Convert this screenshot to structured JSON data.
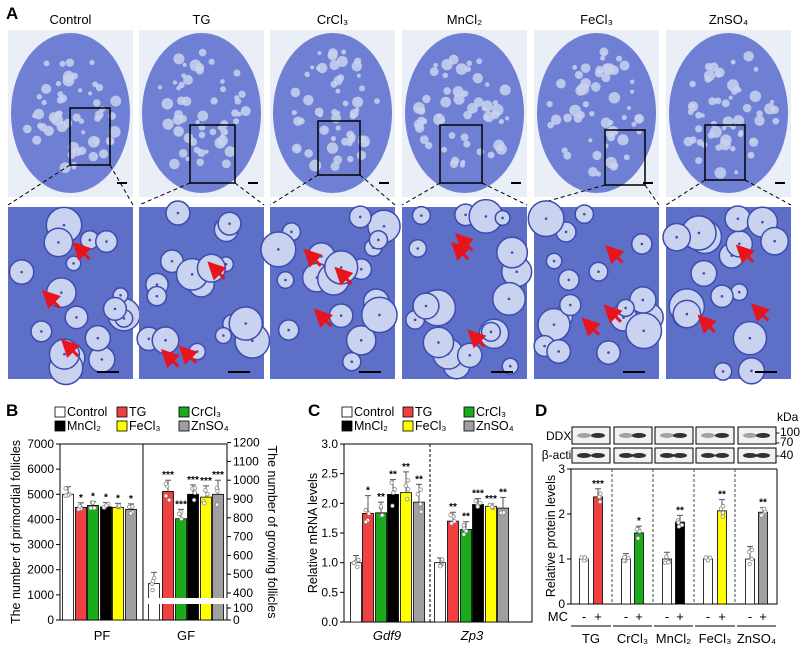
{
  "panel_labels": [
    "A",
    "B",
    "C",
    "D"
  ],
  "panel_a": {
    "columns": [
      "Control",
      "TG",
      "CrCl₃",
      "MnCl₂",
      "FeCl₃",
      "ZnSO₄"
    ],
    "image_colors": {
      "background": "#e9eef7",
      "tissue": "#6f7fd3",
      "oocyte": "#c9d2ef",
      "arrow": "#e8141c"
    }
  },
  "legend": [
    "Control",
    "TG",
    "CrCl₃",
    "MnCl₂",
    "FeCl₃",
    "ZnSO₄"
  ],
  "group_colors": [
    "#ffffff",
    "#f04040",
    "#1aaa1a",
    "#000000",
    "#ffff00",
    "#a0a0a0"
  ],
  "chart_data": [
    {
      "panel": "B",
      "type": "bar",
      "categories": [
        "PF",
        "GF"
      ],
      "ylabel": "The number of primordial follicles",
      "y2label": "The number of growing follicles",
      "ylim": [
        0,
        7000
      ],
      "yticks": [
        0,
        1000,
        2000,
        3000,
        4000,
        5000,
        6000,
        7000
      ],
      "y2ticks": [
        0,
        100,
        400,
        500,
        600,
        700,
        800,
        900,
        1000,
        1100,
        1200
      ],
      "y2_axis_break": [
        100,
        400
      ],
      "series": [
        {
          "name": "Control",
          "values": [
            5000,
            450
          ],
          "error": [
            300,
            60
          ],
          "sig": [
            "",
            ""
          ]
        },
        {
          "name": "TG",
          "values": [
            4480,
            940
          ],
          "error": [
            180,
            60
          ],
          "sig": [
            "*",
            "***"
          ]
        },
        {
          "name": "CrCl₃",
          "values": [
            4560,
            795
          ],
          "error": [
            150,
            50
          ],
          "sig": [
            "*",
            "***"
          ]
        },
        {
          "name": "MnCl₂",
          "values": [
            4500,
            925
          ],
          "error": [
            170,
            50
          ],
          "sig": [
            "*",
            "***"
          ]
        },
        {
          "name": "FeCl₃",
          "values": [
            4480,
            910
          ],
          "error": [
            160,
            60
          ],
          "sig": [
            "*",
            "***"
          ]
        },
        {
          "name": "ZnSO₄",
          "values": [
            4400,
            925
          ],
          "error": [
            220,
            75
          ],
          "sig": [
            "*",
            "***"
          ]
        }
      ]
    },
    {
      "panel": "C",
      "type": "bar",
      "categories": [
        "Gdf9",
        "Zp3"
      ],
      "ylabel": "Relative mRNA levels",
      "ylim": [
        0,
        3.0
      ],
      "yticks": [
        "0.0",
        "0.5",
        "1.0",
        "1.5",
        "2.0",
        "2.5",
        "3.0"
      ],
      "series": [
        {
          "name": "Control",
          "values": [
            1.0,
            1.0
          ],
          "error": [
            0.12,
            0.08
          ],
          "sig": [
            "",
            ""
          ]
        },
        {
          "name": "TG",
          "values": [
            1.83,
            1.7
          ],
          "error": [
            0.3,
            0.15
          ],
          "sig": [
            "*",
            "**"
          ]
        },
        {
          "name": "CrCl₃",
          "values": [
            1.84,
            1.56
          ],
          "error": [
            0.18,
            0.13
          ],
          "sig": [
            "**",
            "**"
          ]
        },
        {
          "name": "MnCl₂",
          "values": [
            2.15,
            1.98
          ],
          "error": [
            0.25,
            0.1
          ],
          "sig": [
            "**",
            "***"
          ]
        },
        {
          "name": "FeCl₃",
          "values": [
            2.18,
            1.95
          ],
          "error": [
            0.35,
            0.04
          ],
          "sig": [
            "**",
            "***"
          ]
        },
        {
          "name": "ZnSO₄",
          "values": [
            2.02,
            1.92
          ],
          "error": [
            0.3,
            0.18
          ],
          "sig": [
            "**",
            "**"
          ]
        }
      ]
    },
    {
      "panel": "D",
      "type": "bar",
      "ylabel": "Relative protein levels",
      "ylim": [
        0,
        3
      ],
      "yticks": [
        "0",
        "1",
        "2",
        "3"
      ],
      "treatment_label": "MC",
      "treatment_levels": [
        "-",
        "+"
      ],
      "groups": [
        {
          "name": "TG",
          "values": [
            1.0,
            2.38
          ],
          "error": [
            0.05,
            0.18
          ],
          "sig": "***"
        },
        {
          "name": "CrCl₃",
          "values": [
            1.0,
            1.58
          ],
          "error": [
            0.12,
            0.15
          ],
          "sig": "*"
        },
        {
          "name": "MnCl₂",
          "values": [
            1.0,
            1.82
          ],
          "error": [
            0.15,
            0.15
          ],
          "sig": "**"
        },
        {
          "name": "FeCl₃",
          "values": [
            1.0,
            2.07
          ],
          "error": [
            0.05,
            0.25
          ],
          "sig": "**"
        },
        {
          "name": "ZnSO₄",
          "values": [
            1.0,
            2.04
          ],
          "error": [
            0.28,
            0.1
          ],
          "sig": "**"
        }
      ],
      "blots": {
        "rows": [
          "DDX4",
          "β-actin"
        ],
        "unit": "kDa",
        "markers": [
          "-100",
          "-70",
          "-40"
        ]
      }
    }
  ]
}
